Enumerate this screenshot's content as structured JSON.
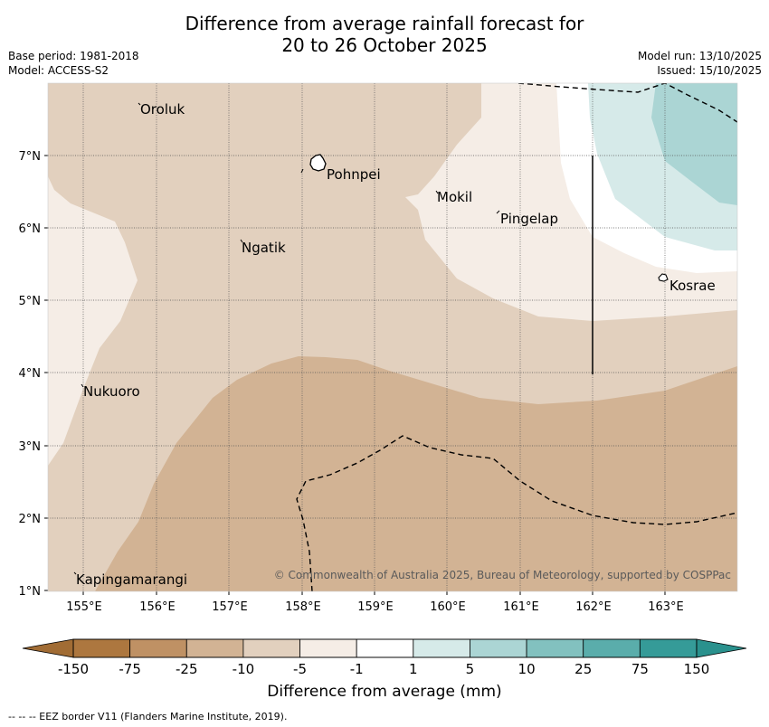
{
  "title_line1": "Difference from average rainfall forecast for",
  "title_line2": "20 to 26 October 2025",
  "base_period": "Base period: 1981-2018",
  "model": "Model: ACCESS-S2",
  "model_run": "Model run: 13/10/2025",
  "issued": "Issued: 15/10/2025",
  "copyright": "© Commonwealth of Australia 2025, Bureau of Meteorology, supported by COSPPac",
  "places": {
    "oroluk": "Oroluk",
    "pohnpei": "Pohnpei",
    "mokil": "Mokil",
    "pingelap": "Pingelap",
    "ngatik": "Ngatik",
    "kosrae": "Kosrae",
    "nukuoro": "Nukuoro",
    "kapingamarangi": "Kapingamarangi"
  },
  "lat_ticks": [
    "7°N",
    "6°N",
    "5°N",
    "4°N",
    "3°N",
    "2°N",
    "1°N"
  ],
  "lon_ticks": [
    "155°E",
    "156°E",
    "157°E",
    "158°E",
    "159°E",
    "160°E",
    "161°E",
    "162°E",
    "163°E"
  ],
  "colorbar": {
    "ticks": [
      "-150",
      "-75",
      "-25",
      "-10",
      "-5",
      "-1",
      "1",
      "5",
      "10",
      "25",
      "75",
      "150"
    ],
    "colors": [
      "#ad773f",
      "#bf9164",
      "#d2b394",
      "#e2d0be",
      "#f5ede6",
      "#ffffff",
      "#d6eae9",
      "#abd5d4",
      "#82c1bf",
      "#5aadab",
      "#359b98"
    ],
    "label": "Difference from average (mm)"
  },
  "footnote": "--  --  -- EEZ border V11 (Flanders Marine Institute, 2019)."
}
